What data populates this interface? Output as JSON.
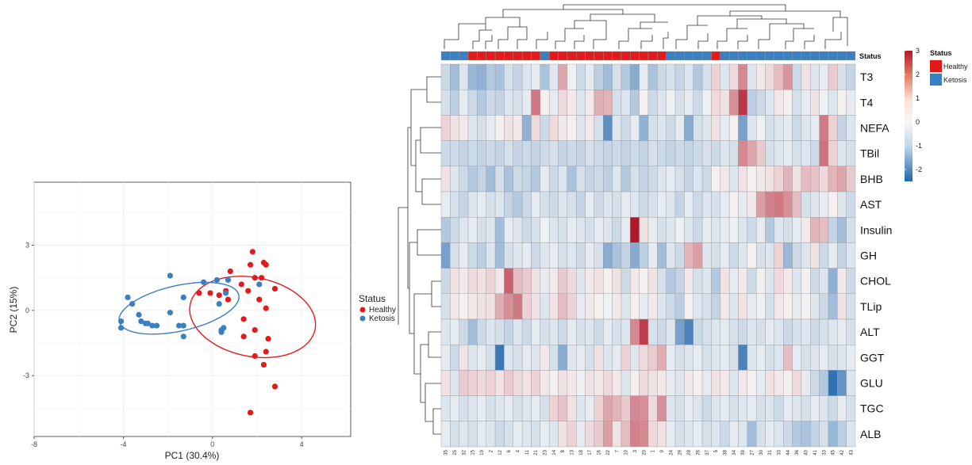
{
  "colors": {
    "healthy": "#e31a1c",
    "ketosis": "#3a7fc0",
    "heat_low": "#2166ac",
    "heat_mid": "#f7f7f7",
    "heat_high": "#b2182b"
  },
  "chart_data": [
    {
      "type": "scatter",
      "xlabel": "PC1 (30.4%)",
      "ylabel": "PC2 (15%)",
      "xlim": [
        -8,
        6.2
      ],
      "ylim": [
        -5.8,
        5.9
      ],
      "xticks": [
        "-8",
        "-4",
        "0",
        "4"
      ],
      "yticks": [
        "-3",
        "0",
        "3"
      ],
      "grid": true,
      "legend": {
        "title": "Status",
        "position": "right",
        "entries": [
          "Healthy",
          "Ketosis"
        ]
      },
      "series": [
        {
          "name": "Healthy",
          "color": "#e31a1c",
          "points": [
            [
              1.8,
              2.7
            ],
            [
              1.7,
              2.1
            ],
            [
              2.3,
              2.2
            ],
            [
              2.4,
              2.1
            ],
            [
              1.9,
              1.5
            ],
            [
              0.8,
              1.8
            ],
            [
              2.2,
              1.5
            ],
            [
              1.3,
              1.2
            ],
            [
              0.6,
              0.9
            ],
            [
              1.6,
              0.9
            ],
            [
              2.8,
              1.0
            ],
            [
              -0.6,
              0.8
            ],
            [
              -0.1,
              0.8
            ],
            [
              0.3,
              0.7
            ],
            [
              0.7,
              0.5
            ],
            [
              2.1,
              0.5
            ],
            [
              2.4,
              0.1
            ],
            [
              1.4,
              -0.4
            ],
            [
              1.9,
              -0.9
            ],
            [
              1.4,
              -1.2
            ],
            [
              2.5,
              -1.3
            ],
            [
              2.4,
              -1.9
            ],
            [
              1.9,
              -2.1
            ],
            [
              2.3,
              -2.5
            ],
            [
              2.8,
              -3.5
            ],
            [
              1.7,
              -4.7
            ]
          ]
        },
        {
          "name": "Ketosis",
          "color": "#3a7fc0",
          "points": [
            [
              -1.9,
              1.6
            ],
            [
              0.2,
              1.4
            ],
            [
              0.7,
              1.4
            ],
            [
              -0.4,
              1.3
            ],
            [
              2.1,
              1.2
            ],
            [
              0.6,
              0.8
            ],
            [
              -3.8,
              0.6
            ],
            [
              -1.3,
              0.6
            ],
            [
              -3.6,
              0.3
            ],
            [
              -1.9,
              -0.1
            ],
            [
              -3.3,
              -0.2
            ],
            [
              -4.1,
              -0.5
            ],
            [
              -4.1,
              -0.8
            ],
            [
              -3.2,
              -0.5
            ],
            [
              -2.9,
              -0.6
            ],
            [
              -2.7,
              -0.7
            ],
            [
              -1.5,
              -0.7
            ],
            [
              -1.3,
              -0.7
            ],
            [
              0.5,
              -0.8
            ],
            [
              -1.3,
              -1.2
            ],
            [
              0.4,
              -1.0
            ],
            [
              0.4,
              -0.9
            ],
            [
              0.3,
              0.3
            ],
            [
              -2.5,
              -0.7
            ],
            [
              -3.0,
              -0.6
            ]
          ]
        }
      ],
      "ellipses": [
        {
          "name": "Healthy",
          "center": [
            1.8,
            -0.3
          ],
          "radii": [
            3.3,
            5.2
          ],
          "angle_deg": 78
        },
        {
          "name": "Ketosis",
          "center": [
            -1.5,
            0.1
          ],
          "radii": [
            5.0,
            1.9
          ],
          "angle_deg": 13
        }
      ]
    },
    {
      "type": "heatmap",
      "rows": [
        "T3",
        "T4",
        "NEFA",
        "TBil",
        "BHB",
        "AST",
        "Insulin",
        "GH",
        "CHOL",
        "TLip",
        "ALT",
        "GGT",
        "GLU",
        "TGC",
        "ALB"
      ],
      "columns": [
        "35",
        "25",
        "32",
        "15",
        "19",
        "2",
        "12",
        "6",
        "4",
        "11",
        "21",
        "23",
        "14",
        "8",
        "13",
        "18",
        "17",
        "16",
        "22",
        "7",
        "10",
        "3",
        "20",
        "1",
        "9",
        "24",
        "29",
        "28",
        "26",
        "37",
        "5",
        "38",
        "34",
        "39",
        "27",
        "30",
        "31",
        "33",
        "44",
        "36",
        "40",
        "41",
        "33",
        "45",
        "42",
        "43"
      ],
      "status_label": "Status",
      "status": [
        "Ketosis",
        "Ketosis",
        "Ketosis",
        "Healthy",
        "Healthy",
        "Healthy",
        "Healthy",
        "Healthy",
        "Healthy",
        "Healthy",
        "Healthy",
        "Ketosis",
        "Healthy",
        "Healthy",
        "Healthy",
        "Healthy",
        "Healthy",
        "Healthy",
        "Healthy",
        "Healthy",
        "Healthy",
        "Healthy",
        "Healthy",
        "Healthy",
        "Healthy",
        "Ketosis",
        "Ketosis",
        "Ketosis",
        "Ketosis",
        "Ketosis",
        "Healthy",
        "Ketosis",
        "Ketosis",
        "Ketosis",
        "Ketosis",
        "Ketosis",
        "Ketosis",
        "Ketosis",
        "Ketosis",
        "Ketosis",
        "Ketosis",
        "Ketosis",
        "Ketosis",
        "Ketosis",
        "Ketosis",
        "Ketosis"
      ],
      "values": [
        [
          -0.5,
          -1.0,
          -0.3,
          -1.1,
          -1.2,
          -0.8,
          -0.9,
          -0.4,
          -0.6,
          -0.3,
          -0.2,
          -0.9,
          -0.3,
          1.1,
          -0.1,
          -0.5,
          -0.2,
          -0.7,
          -1.0,
          -0.4,
          -0.8,
          -1.3,
          -0.2,
          -0.9,
          -0.5,
          -0.4,
          -0.6,
          -0.3,
          -0.8,
          -0.4,
          0.5,
          -0.3,
          0.4,
          1.5,
          -0.3,
          0.2,
          0.4,
          0.8,
          1.3,
          -0.5,
          0.3,
          -0.3,
          -0.2,
          0.6,
          -0.4,
          -0.6
        ],
        [
          -0.4,
          -0.7,
          -0.2,
          -0.5,
          -0.8,
          -0.5,
          -0.6,
          -0.3,
          -0.4,
          -0.2,
          1.7,
          0.1,
          -0.2,
          0.4,
          0.2,
          -0.3,
          0.2,
          1.0,
          0.9,
          -0.4,
          -0.3,
          -0.8,
          0.1,
          -0.5,
          -0.3,
          -0.1,
          -0.4,
          -0.2,
          -0.5,
          -0.1,
          0.4,
          0.3,
          1.4,
          2.6,
          -0.7,
          -0.5,
          -0.3,
          0.2,
          0.1,
          -0.4,
          -0.2,
          0.3,
          -0.1,
          -0.3,
          0.1,
          -0.2
        ],
        [
          0.5,
          0.3,
          0.2,
          -0.3,
          -0.4,
          -0.2,
          0.1,
          0.3,
          0.2,
          -1.2,
          0.4,
          -0.5,
          0.4,
          0.2,
          0.1,
          -0.3,
          0.2,
          -0.4,
          -1.8,
          -0.3,
          -0.5,
          -0.2,
          -1.2,
          -0.4,
          -0.3,
          -0.5,
          -0.2,
          -1.3,
          -0.4,
          -0.3,
          0.3,
          -0.2,
          0.1,
          -1.5,
          -0.3,
          -0.1,
          -0.4,
          -0.3,
          -0.2,
          -0.5,
          -0.3,
          -0.2,
          1.7,
          0.5,
          -0.6,
          -0.3
        ],
        [
          -0.5,
          -0.5,
          -0.6,
          -0.5,
          -0.6,
          -0.5,
          -0.6,
          -0.4,
          -0.6,
          -0.5,
          -0.6,
          -0.5,
          -0.4,
          -0.6,
          -0.5,
          -0.6,
          -0.4,
          -0.5,
          -0.6,
          -0.5,
          -0.6,
          -0.5,
          -0.6,
          -0.4,
          -0.5,
          -0.6,
          -0.5,
          -0.6,
          -0.5,
          -0.4,
          -0.5,
          -0.3,
          -0.4,
          1.5,
          1.1,
          0.6,
          -0.4,
          -0.3,
          -0.2,
          -0.4,
          -0.3,
          -0.5,
          1.8,
          0.5,
          -0.3,
          -0.4
        ],
        [
          0.3,
          -0.3,
          -0.5,
          -0.8,
          -0.6,
          -1.0,
          -0.4,
          -0.9,
          -0.5,
          -0.6,
          -0.8,
          -0.2,
          -0.5,
          -0.3,
          -0.9,
          -0.4,
          -0.6,
          -0.5,
          -0.7,
          -0.3,
          -0.8,
          -0.4,
          -0.6,
          -0.5,
          -0.3,
          -0.2,
          -0.4,
          -0.6,
          -0.3,
          -0.5,
          0.1,
          0.2,
          -0.3,
          0.3,
          0.1,
          0.2,
          0.3,
          0.5,
          0.9,
          0.3,
          0.8,
          0.7,
          0.4,
          0.9,
          1.1,
          0.6
        ],
        [
          -0.2,
          -0.4,
          -0.6,
          -0.3,
          -0.2,
          -0.4,
          -0.3,
          -0.6,
          -0.8,
          -0.5,
          -0.2,
          -0.4,
          -0.5,
          -0.3,
          -0.4,
          -0.6,
          -0.2,
          -0.5,
          -0.3,
          -0.4,
          -0.2,
          -0.3,
          -0.5,
          -0.4,
          -0.2,
          -0.3,
          -0.6,
          -0.2,
          -0.5,
          -0.3,
          -0.4,
          -0.2,
          0.1,
          -0.2,
          0.2,
          1.2,
          1.6,
          1.7,
          1.4,
          0.8,
          -0.4,
          -0.3,
          -0.2,
          0.1,
          -0.3,
          -0.5
        ],
        [
          -0.8,
          -0.5,
          -0.3,
          -0.2,
          -0.4,
          -0.3,
          -1.0,
          -0.2,
          -0.3,
          -0.5,
          -0.4,
          -0.1,
          -0.3,
          -0.4,
          -0.2,
          -0.3,
          -0.4,
          -0.2,
          -0.3,
          -0.5,
          -0.2,
          3.0,
          0.3,
          -0.2,
          -0.4,
          -0.3,
          -0.1,
          -0.3,
          -0.5,
          -0.2,
          -0.3,
          -0.2,
          -0.1,
          -0.3,
          -0.5,
          -0.2,
          -0.8,
          -0.3,
          -0.4,
          -0.2,
          0.2,
          0.9,
          0.8,
          -0.6,
          -1.0,
          -0.4
        ],
        [
          -1.5,
          -0.4,
          -0.2,
          -0.5,
          -0.7,
          -0.3,
          -1.0,
          -0.4,
          -0.3,
          -0.2,
          -0.5,
          -0.3,
          -0.2,
          -0.4,
          -0.3,
          -0.5,
          -0.2,
          -0.4,
          -1.3,
          -0.9,
          -0.6,
          -1.3,
          -0.7,
          -0.2,
          -1.0,
          -0.3,
          -0.5,
          0.9,
          1.2,
          -0.3,
          -0.4,
          -0.2,
          -0.5,
          -0.3,
          0.1,
          -0.4,
          -0.3,
          0.5,
          -1.1,
          -0.5,
          -0.3,
          0.3,
          -0.5,
          -0.2,
          -0.6,
          -0.3
        ],
        [
          -0.5,
          0.3,
          0.2,
          0.4,
          0.3,
          0.5,
          0.2,
          2.0,
          0.8,
          0.6,
          0.3,
          -0.2,
          0.2,
          0.6,
          0.4,
          -0.3,
          0.2,
          0.3,
          0.1,
          0.3,
          -0.5,
          0.2,
          0.1,
          0.3,
          -0.4,
          -0.8,
          -0.6,
          0.2,
          -0.4,
          -0.3,
          -0.8,
          0.3,
          -0.2,
          0.2,
          -0.5,
          0.1,
          -0.3,
          0.4,
          0.2,
          -0.3,
          0.1,
          -0.5,
          -0.3,
          -1.2,
          0.2,
          -0.5
        ],
        [
          -0.4,
          0.2,
          0.1,
          0.2,
          0.3,
          0.3,
          1.0,
          1.4,
          1.7,
          0.5,
          0.3,
          -0.3,
          0.3,
          0.8,
          0.5,
          -0.2,
          0.2,
          0.1,
          -0.1,
          0.2,
          -0.3,
          0.1,
          -0.2,
          0.2,
          -0.3,
          -0.5,
          -0.7,
          0.1,
          -0.3,
          -0.4,
          -0.6,
          0.2,
          -0.3,
          0.3,
          -0.2,
          -0.1,
          -0.4,
          0.2,
          0.1,
          -0.2,
          0.1,
          -0.3,
          -0.5,
          -1.0,
          0.3,
          -0.4
        ],
        [
          -0.3,
          -0.2,
          -0.5,
          -1.0,
          -0.5,
          -0.3,
          -0.4,
          -0.6,
          -0.3,
          -0.5,
          -0.2,
          -0.4,
          -0.3,
          -0.5,
          -0.2,
          -0.4,
          -0.3,
          -0.5,
          -0.2,
          -0.4,
          -0.3,
          1.5,
          2.5,
          -0.4,
          -0.5,
          -0.3,
          -1.5,
          -2.0,
          -0.5,
          -0.4,
          -0.3,
          -0.2,
          -0.4,
          -0.5,
          -0.3,
          -0.4,
          -0.2,
          -0.3,
          -0.5,
          -0.4,
          -0.3,
          -0.5,
          -0.4,
          -0.3,
          -0.2,
          -0.4
        ],
        [
          -0.2,
          -0.5,
          0.3,
          -0.3,
          -0.2,
          -0.4,
          -2.2,
          -0.3,
          -0.4,
          -0.2,
          -0.3,
          0.2,
          -0.4,
          -1.3,
          -0.3,
          -0.2,
          -0.4,
          0.3,
          -0.3,
          -0.2,
          0.5,
          -0.3,
          0.4,
          0.6,
          1.0,
          -0.2,
          -0.4,
          -0.3,
          -0.2,
          -0.4,
          -0.3,
          -0.2,
          -0.4,
          -2.0,
          -0.3,
          -0.2,
          -0.4,
          -0.3,
          0.8,
          -0.2,
          -0.4,
          -0.3,
          -0.2,
          -0.4,
          -0.3,
          -0.2
        ],
        [
          0.3,
          -0.3,
          0.6,
          0.5,
          0.4,
          0.5,
          0.3,
          0.6,
          0.4,
          0.3,
          0.5,
          0.2,
          0.1,
          0.3,
          0.2,
          -0.1,
          0.3,
          0.2,
          0.4,
          0.2,
          -0.3,
          0.1,
          0.4,
          0.3,
          0.2,
          -0.2,
          -0.3,
          0.2,
          0.1,
          -0.2,
          0.3,
          0.2,
          -0.3,
          0.2,
          0.1,
          -0.2,
          0.3,
          0.2,
          0.1,
          0.4,
          -0.2,
          -0.5,
          -0.8,
          -2.3,
          -1.7,
          -0.3
        ],
        [
          -0.3,
          -0.2,
          -0.4,
          -0.3,
          -0.2,
          -0.4,
          -0.3,
          -0.2,
          -0.4,
          -0.3,
          -0.2,
          -0.4,
          0.5,
          0.7,
          0.3,
          -0.3,
          -0.2,
          0.5,
          1.1,
          0.9,
          0.6,
          1.5,
          1.4,
          0.4,
          1.4,
          -0.3,
          -0.4,
          -0.2,
          -0.3,
          -0.5,
          -0.3,
          -0.2,
          -0.4,
          -0.3,
          -0.2,
          -0.4,
          -0.3,
          -0.5,
          -0.2,
          -0.3,
          -0.4,
          -0.2,
          -0.3,
          -0.5,
          -0.2,
          -0.4
        ],
        [
          -0.2,
          -0.4,
          -0.3,
          -0.4,
          -0.2,
          -0.3,
          -0.5,
          -0.4,
          -0.2,
          -0.3,
          -0.4,
          -0.2,
          -0.3,
          0.3,
          0.5,
          -0.2,
          0.4,
          0.6,
          1.2,
          0.3,
          0.8,
          1.6,
          1.5,
          0.4,
          0.3,
          -0.2,
          -0.4,
          -0.3,
          -0.2,
          -0.4,
          -0.3,
          -0.5,
          -0.2,
          -0.3,
          -1.0,
          -0.4,
          -0.2,
          -0.3,
          -0.5,
          -0.8,
          -0.9,
          -0.6,
          -0.4,
          -1.1,
          -0.7,
          -0.3
        ]
      ],
      "scale": {
        "min": -2.5,
        "max": 3,
        "ticks": [
          "3",
          "2",
          "1",
          "0",
          "-1",
          "-2"
        ]
      },
      "legend": {
        "title": "Status",
        "entries": [
          "Healthy",
          "Ketosis"
        ]
      }
    }
  ]
}
